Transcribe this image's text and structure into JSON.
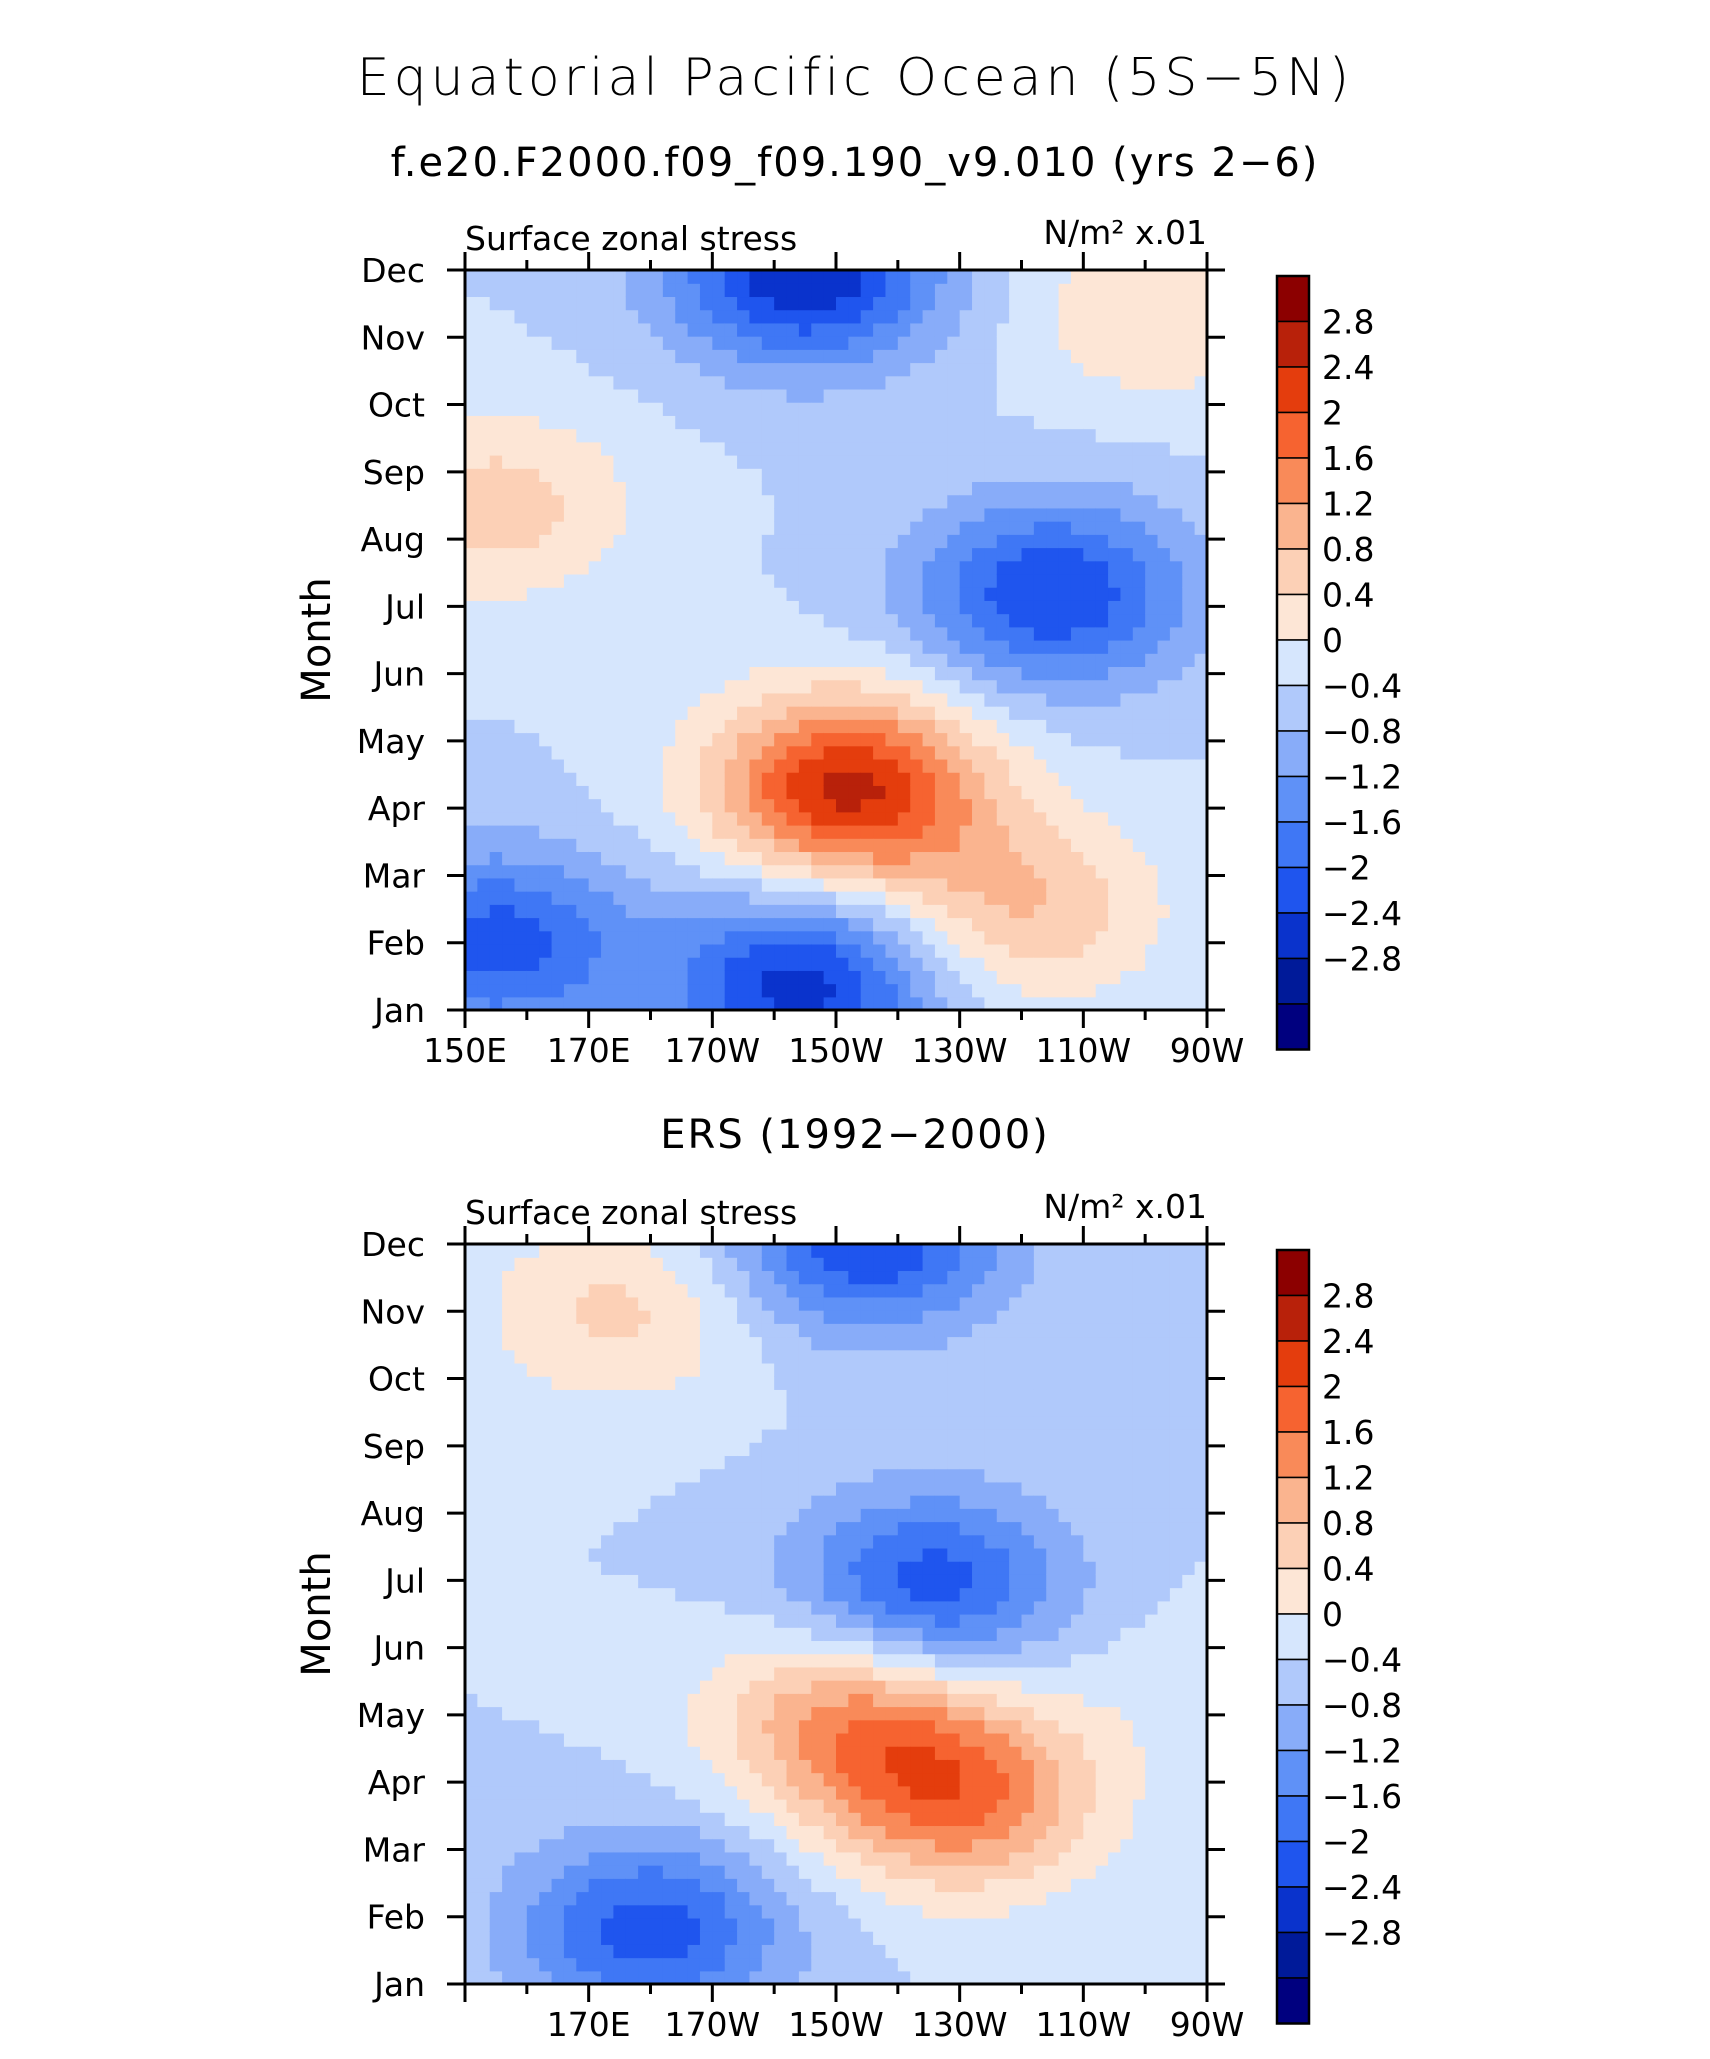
{
  "title": "Equatorial Pacific Ocean (5S−5N)",
  "subtitle": "f.e20.F2000.f09_f09.190_v9.010 (yrs 2−6)",
  "colors": {
    "levels": [
      "#00007f",
      "#001a99",
      "#0a33cc",
      "#1f55ee",
      "#3f77f5",
      "#5f91f7",
      "#88acf9",
      "#b0c9fb",
      "#d6e6fd",
      "#fde6d6",
      "#fcd0b6",
      "#fab48f",
      "#f98a59",
      "#f66330",
      "#e43d0d",
      "#b8210a",
      "#8c0000"
    ]
  },
  "colorbar": {
    "labels": [
      "2.8",
      "2.4",
      "2",
      "1.6",
      "1.2",
      "0.8",
      "0.4",
      "0",
      "−0.4",
      "−0.8",
      "−1.2",
      "−1.6",
      "−2",
      "−2.4",
      "−2.8"
    ]
  },
  "chart_data": [
    {
      "type": "heatmap",
      "panel_title": "",
      "left_label": "Surface zonal stress",
      "units_label": "N/m² x.01",
      "ylabel": "Month",
      "y_ticks": [
        "Jan",
        "Feb",
        "Mar",
        "Apr",
        "May",
        "Jun",
        "Jul",
        "Aug",
        "Sep",
        "Oct",
        "Nov",
        "Dec"
      ],
      "x_ticks": [
        "150E",
        "170E",
        "170W",
        "150W",
        "130W",
        "110W",
        "90W"
      ],
      "x_range": [
        "150E",
        "90W"
      ],
      "y_range": [
        "Jan",
        "Dec"
      ],
      "contour_levels": [
        -2.8,
        -2.4,
        -2,
        -1.6,
        -1.2,
        -0.8,
        -0.4,
        0,
        0.4,
        0.8,
        1.2,
        1.6,
        2,
        2.4,
        2.8
      ],
      "features": [
        {
          "lon": 212,
          "month": 3.3,
          "value": 2.9
        },
        {
          "lon": 240,
          "month": 1.5,
          "value": 1.2
        },
        {
          "lon": 155,
          "month": 1.0,
          "value": -1.8
        },
        {
          "lon": 205,
          "month": 0.4,
          "value": -2.2
        },
        {
          "lon": 205,
          "month": 11.0,
          "value": -2.4
        },
        {
          "lon": 245,
          "month": 6.2,
          "value": -2.0
        },
        {
          "lon": 155,
          "month": 7.5,
          "value": 1.0
        },
        {
          "lon": 262,
          "month": 10.4,
          "value": 0.8
        }
      ]
    },
    {
      "type": "heatmap",
      "panel_title": "ERS (1992−2000)",
      "left_label": "Surface zonal stress",
      "units_label": "N/m² x.01",
      "ylabel": "Month",
      "y_ticks": [
        "Jan",
        "Feb",
        "Mar",
        "Apr",
        "May",
        "Jun",
        "Jul",
        "Aug",
        "Sep",
        "Oct",
        "Nov",
        "Dec"
      ],
      "x_ticks": [
        "170E",
        "170W",
        "150W",
        "130W",
        "110W",
        "90W"
      ],
      "x_range": [
        "150E",
        "90W"
      ],
      "y_range": [
        "Jan",
        "Dec"
      ],
      "contour_levels": [
        -2.8,
        -2.4,
        -2,
        -1.6,
        -1.2,
        -0.8,
        -0.4,
        0,
        0.4,
        0.8,
        1.2,
        1.6,
        2,
        2.4,
        2.8
      ],
      "features": [
        {
          "lon": 230,
          "month": 2.8,
          "value": 2.0
        },
        {
          "lon": 212,
          "month": 4.0,
          "value": 1.6
        },
        {
          "lon": 180,
          "month": 0.8,
          "value": -1.8
        },
        {
          "lon": 215,
          "month": 11.1,
          "value": -2.0
        },
        {
          "lon": 225,
          "month": 5.9,
          "value": -1.9
        },
        {
          "lon": 175,
          "month": 10.0,
          "value": 0.9
        },
        {
          "lon": 262,
          "month": 4.5,
          "value": 0.2
        }
      ]
    }
  ]
}
